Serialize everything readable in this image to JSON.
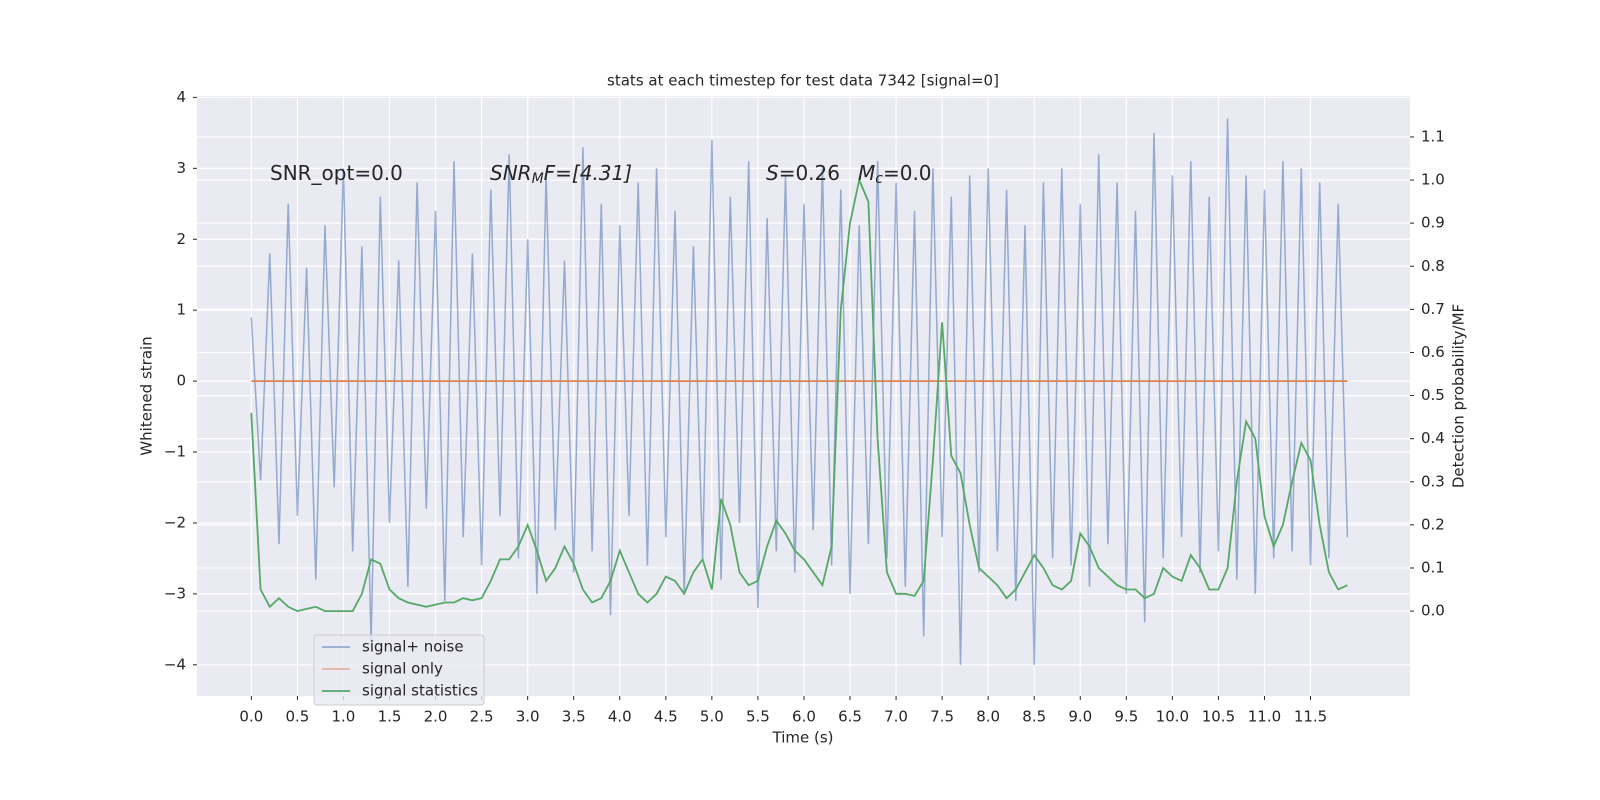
{
  "chart_data": {
    "type": "line",
    "title": "stats at each timestep for test data 7342 [signal=0]",
    "xlabel": "Time (s)",
    "ylabel": "Whitened strain",
    "y2label": "Detection probability/MF",
    "annotations": [
      {
        "main": "SNR_opt=0.0"
      },
      {
        "main": "SNR",
        "sub": "M",
        "tail": "F=[4.31]"
      },
      {
        "main": "S",
        "tail": "=0.26"
      },
      {
        "main": "M",
        "sub": "c",
        "tail": "=0.0"
      }
    ],
    "legend": "lower left",
    "grid": true,
    "x": [
      0,
      0.1,
      0.2,
      0.3,
      0.4,
      0.5,
      0.6,
      0.7,
      0.8,
      0.9,
      1,
      1.1,
      1.2,
      1.3,
      1.4,
      1.5,
      1.6,
      1.7,
      1.8,
      1.9,
      2,
      2.1,
      2.2,
      2.3,
      2.4,
      2.5,
      2.6,
      2.7,
      2.8,
      2.9,
      3,
      3.1,
      3.2,
      3.3,
      3.4,
      3.5,
      3.6,
      3.7,
      3.8,
      3.9,
      4,
      4.1,
      4.2,
      4.3,
      4.4,
      4.5,
      4.6,
      4.7,
      4.8,
      4.9,
      5,
      5.1,
      5.2,
      5.3,
      5.4,
      5.5,
      5.6,
      5.7,
      5.8,
      5.9,
      6,
      6.1,
      6.2,
      6.3,
      6.4,
      6.5,
      6.6,
      6.7,
      6.8,
      6.9,
      7,
      7.1,
      7.2,
      7.3,
      7.4,
      7.5,
      7.6,
      7.7,
      7.8,
      7.9,
      8,
      8.1,
      8.2,
      8.3,
      8.4,
      8.5,
      8.6,
      8.7,
      8.8,
      8.9,
      9,
      9.1,
      9.2,
      9.3,
      9.4,
      9.5,
      9.6,
      9.7,
      9.8,
      9.9,
      10,
      10.1,
      10.2,
      10.3,
      10.4,
      10.5,
      10.6,
      10.7,
      10.8,
      10.9,
      11,
      11.1,
      11.2,
      11.3,
      11.4,
      11.5,
      11.6,
      11.7,
      11.8,
      11.9
    ],
    "series": [
      {
        "name": "signal+ noise",
        "color": "#4c72b0",
        "values": [
          0.9,
          -1.4,
          1.8,
          -2.3,
          2.5,
          -1.9,
          1.6,
          -2.8,
          2.2,
          -1.5,
          3.0,
          -2.4,
          1.9,
          -3.7,
          2.6,
          -2.0,
          1.7,
          -2.9,
          2.8,
          -1.8,
          2.4,
          -3.1,
          3.1,
          -2.2,
          1.8,
          -2.6,
          2.7,
          -1.9,
          3.2,
          -2.5,
          2.0,
          -3.0,
          2.9,
          -2.1,
          1.7,
          -2.7,
          3.3,
          -2.4,
          2.5,
          -3.3,
          2.2,
          -1.9,
          2.8,
          -2.6,
          3.0,
          -2.2,
          2.4,
          -3.0,
          1.9,
          -2.5,
          3.4,
          -2.8,
          2.6,
          -2.0,
          3.1,
          -3.2,
          2.3,
          -2.4,
          2.9,
          -2.7,
          2.5,
          -2.1,
          3.0,
          -2.6,
          2.7,
          -3.0,
          2.2,
          -2.3,
          3.1,
          -2.5,
          2.8,
          -2.9,
          2.4,
          -3.6,
          3.0,
          -2.2,
          2.6,
          -4.0,
          2.9,
          -2.7,
          3.0,
          -2.4,
          2.7,
          -3.1,
          2.2,
          -4.0,
          2.8,
          -2.5,
          3.0,
          -2.6,
          2.5,
          -2.9,
          3.2,
          -2.3,
          2.8,
          -3.0,
          2.4,
          -3.4,
          3.5,
          -2.5,
          2.9,
          -2.2,
          3.1,
          -2.7,
          2.6,
          -2.4,
          3.7,
          -2.8,
          2.9,
          -3.0,
          2.7,
          -2.5,
          3.1,
          -2.4,
          3.0,
          -2.6,
          2.8,
          -2.5,
          2.5,
          -2.2
        ]
      },
      {
        "name": "signal only",
        "color": "#dd8452",
        "values": [
          0,
          0,
          0,
          0,
          0,
          0,
          0,
          0,
          0,
          0,
          0,
          0,
          0,
          0,
          0,
          0,
          0,
          0,
          0,
          0,
          0,
          0,
          0,
          0,
          0,
          0,
          0,
          0,
          0,
          0,
          0,
          0,
          0,
          0,
          0,
          0,
          0,
          0,
          0,
          0,
          0,
          0,
          0,
          0,
          0,
          0,
          0,
          0,
          0,
          0,
          0,
          0,
          0,
          0,
          0,
          0,
          0,
          0,
          0,
          0,
          0,
          0,
          0,
          0,
          0,
          0,
          0,
          0,
          0,
          0,
          0,
          0,
          0,
          0,
          0,
          0,
          0,
          0,
          0,
          0,
          0,
          0,
          0,
          0,
          0,
          0,
          0,
          0,
          0,
          0,
          0,
          0,
          0,
          0,
          0,
          0,
          0,
          0,
          0,
          0,
          0,
          0,
          0,
          0,
          0,
          0,
          0,
          0,
          0,
          0,
          0,
          0,
          0,
          0,
          0,
          0,
          0,
          0,
          0,
          0
        ]
      },
      {
        "name": "signal statistics",
        "color": "#55a868",
        "axis": "y2",
        "values": [
          0.46,
          0.05,
          0.01,
          0.03,
          0.01,
          0,
          0.005,
          0.01,
          0,
          0,
          0,
          0,
          0.04,
          0.12,
          0.11,
          0.05,
          0.03,
          0.02,
          0.015,
          0.01,
          0.015,
          0.02,
          0.02,
          0.03,
          0.025,
          0.03,
          0.07,
          0.12,
          0.12,
          0.15,
          0.2,
          0.14,
          0.07,
          0.1,
          0.15,
          0.11,
          0.05,
          0.02,
          0.03,
          0.07,
          0.14,
          0.09,
          0.04,
          0.02,
          0.04,
          0.08,
          0.07,
          0.04,
          0.09,
          0.12,
          0.05,
          0.26,
          0.2,
          0.09,
          0.06,
          0.07,
          0.15,
          0.21,
          0.18,
          0.14,
          0.12,
          0.09,
          0.06,
          0.15,
          0.7,
          0.9,
          1.0,
          0.95,
          0.4,
          0.09,
          0.04,
          0.04,
          0.035,
          0.07,
          0.35,
          0.67,
          0.36,
          0.32,
          0.2,
          0.1,
          0.08,
          0.06,
          0.03,
          0.05,
          0.09,
          0.13,
          0.1,
          0.06,
          0.05,
          0.07,
          0.18,
          0.15,
          0.1,
          0.08,
          0.06,
          0.05,
          0.05,
          0.03,
          0.04,
          0.1,
          0.08,
          0.07,
          0.13,
          0.1,
          0.05,
          0.05,
          0.1,
          0.3,
          0.44,
          0.4,
          0.22,
          0.15,
          0.2,
          0.3,
          0.39,
          0.35,
          0.2,
          0.09,
          0.05,
          0.06
        ]
      }
    ],
    "xlim": [
      -0.59,
      12.58
    ],
    "xticks": [
      {
        "value": 0,
        "label": "0.0"
      },
      0.5,
      {
        "value": 1,
        "label": "1.0"
      },
      1.5,
      {
        "value": 2,
        "label": "2.0"
      },
      2.5,
      {
        "value": 3,
        "label": "3.0"
      },
      3.5,
      {
        "value": 4,
        "label": "4.0"
      },
      4.5,
      {
        "value": 5,
        "label": "5.0"
      },
      5.5,
      {
        "value": 6,
        "label": "6.0"
      },
      6.5,
      {
        "value": 7,
        "label": "7.0"
      },
      7.5,
      {
        "value": 8,
        "label": "8.0"
      },
      8.5,
      {
        "value": 9,
        "label": "9.0"
      },
      9.5,
      {
        "value": 10,
        "label": "10.0"
      },
      10.5,
      {
        "value": 11,
        "label": "11.0"
      },
      11.5
    ],
    "ylim": [
      -4.44,
      4.02
    ],
    "yticks": [
      {
        "value": -4,
        "label": "−4"
      },
      {
        "value": -3,
        "label": "−3"
      },
      {
        "value": -2,
        "label": "−2"
      },
      {
        "value": -1,
        "label": "−1"
      },
      0,
      1,
      2,
      3,
      4
    ],
    "y2lim": [
      -0.197,
      1.195
    ],
    "y2ticks": [
      {
        "value": 0,
        "label": "0.0"
      },
      0.1,
      0.2,
      0.3,
      0.4,
      0.5,
      0.6,
      0.7,
      0.8,
      0.9,
      {
        "value": 1,
        "label": "1.0"
      },
      1.1
    ]
  }
}
